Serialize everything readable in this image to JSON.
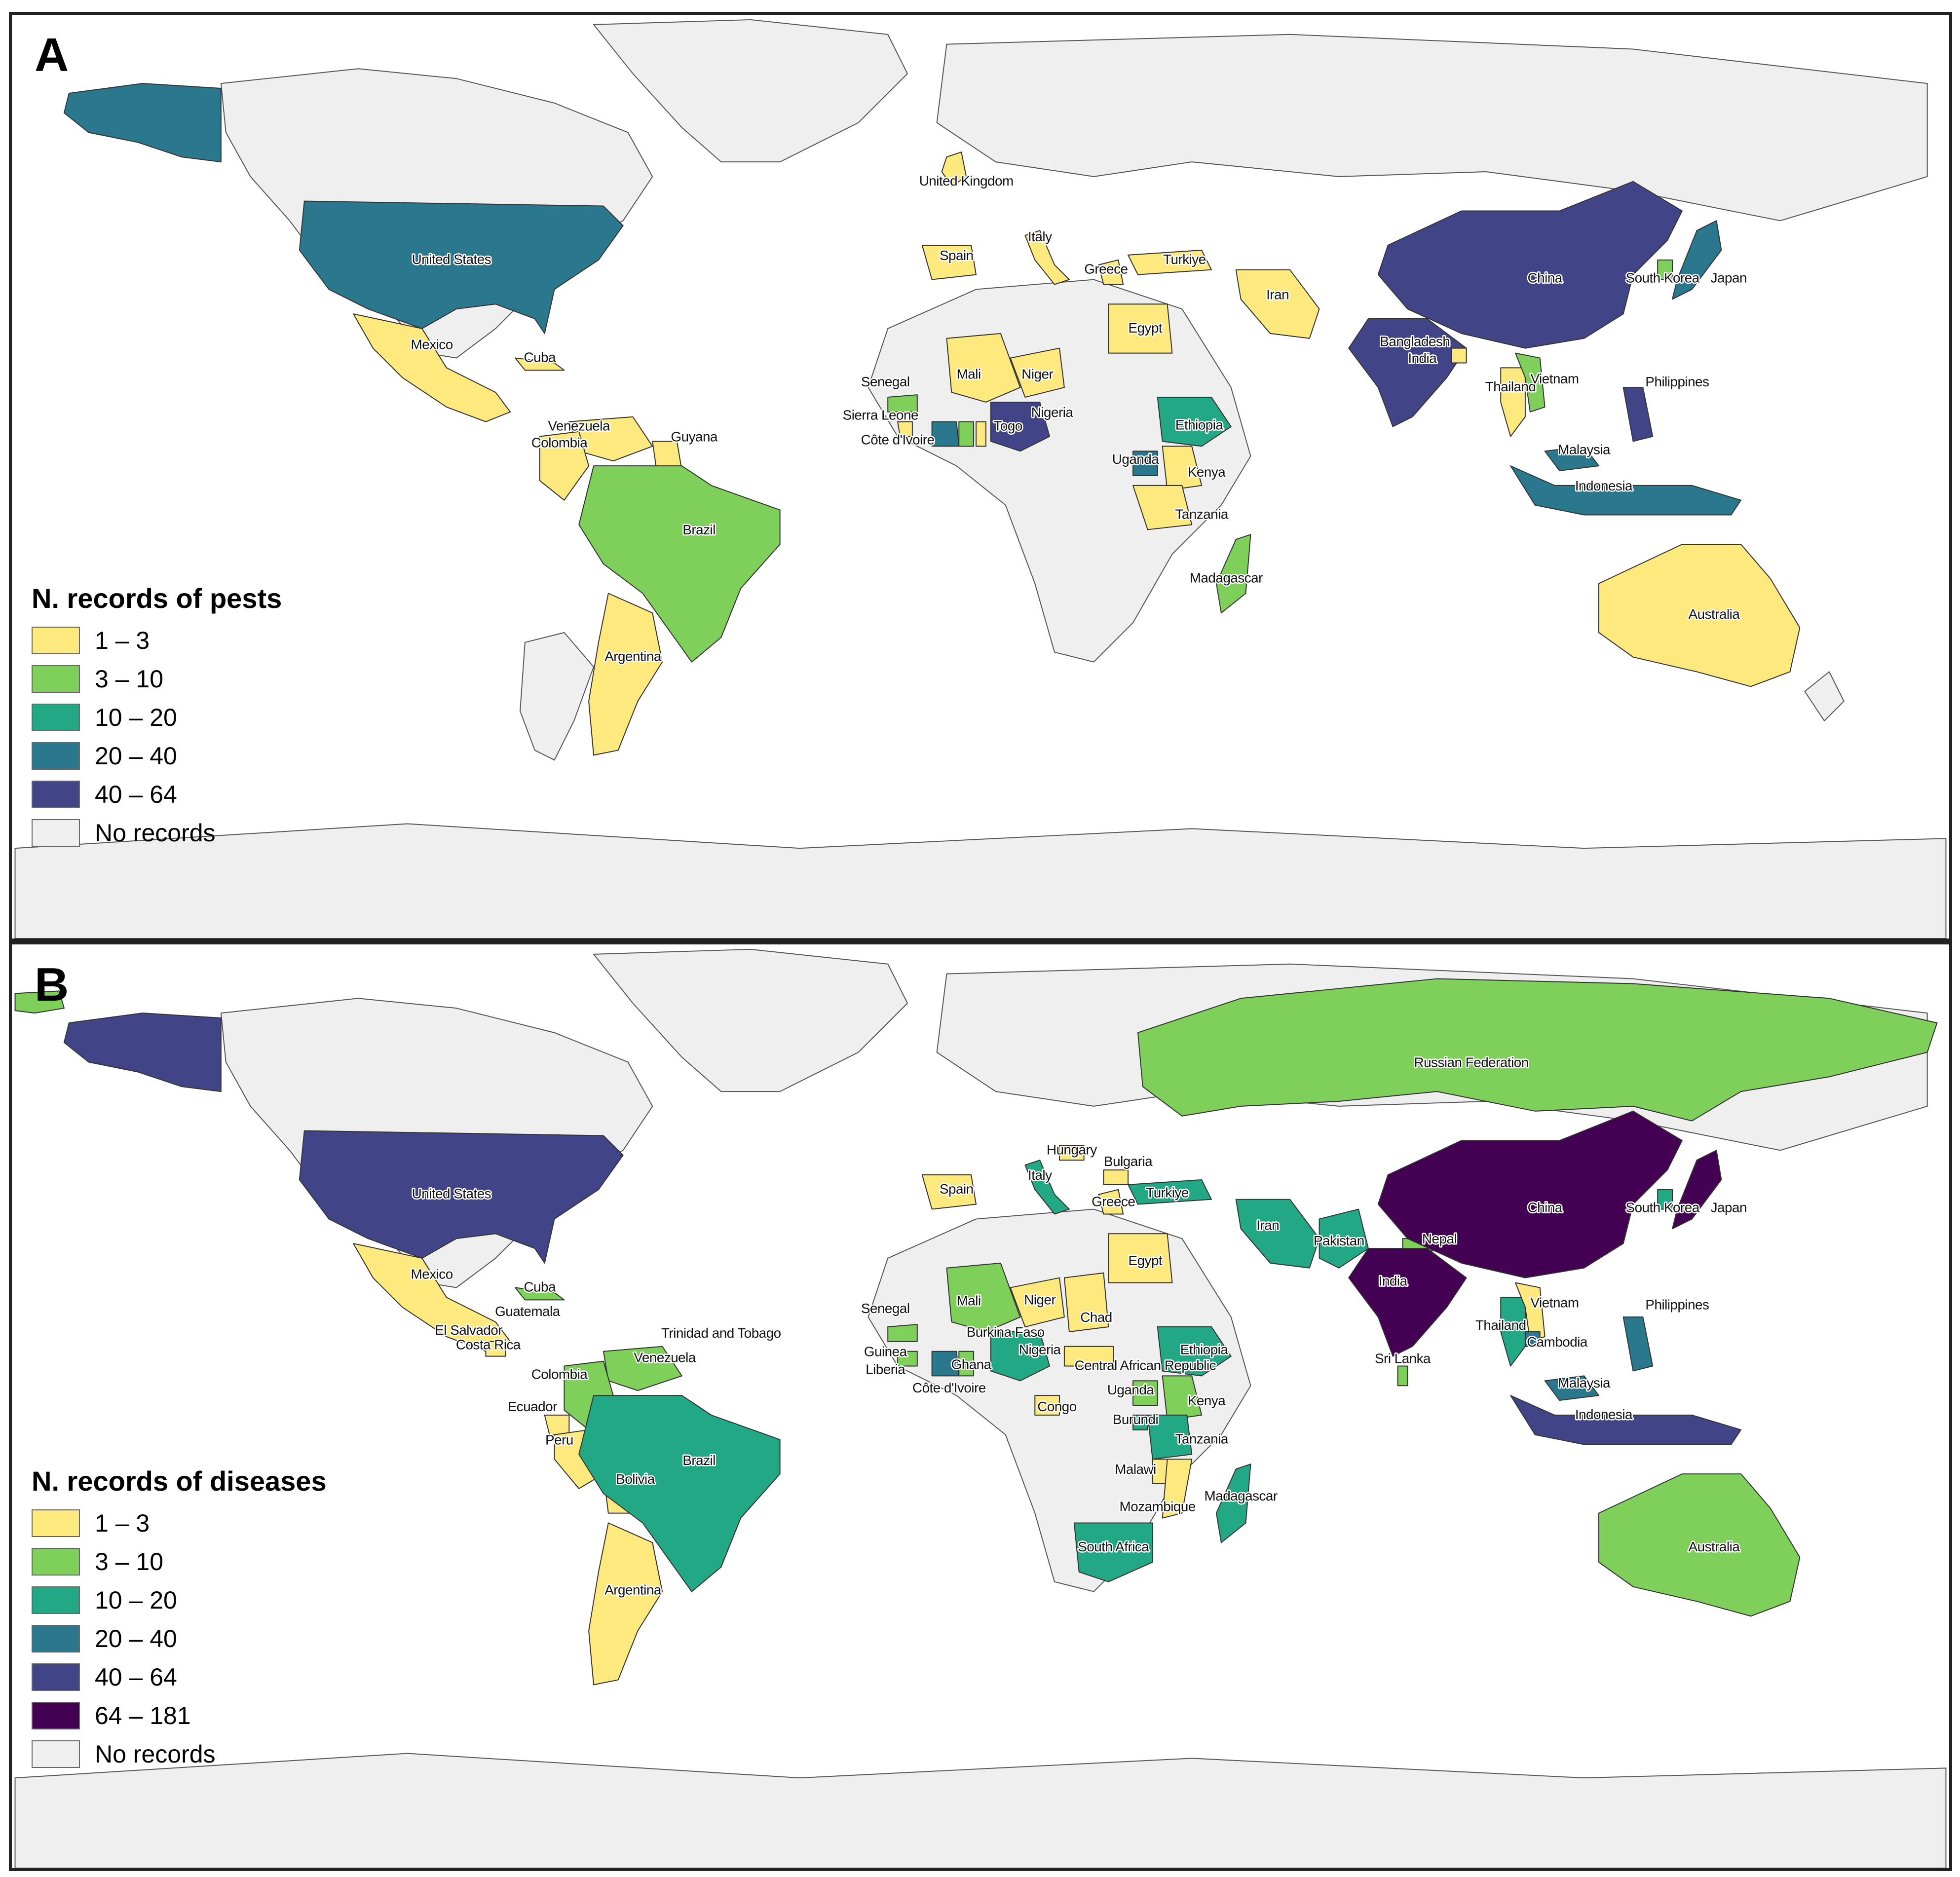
{
  "colors": {
    "c1_3": "#fde97e",
    "c3_10": "#7ed05a",
    "c10_20": "#22a884",
    "c20_40": "#2a788e",
    "c40_64": "#414487",
    "c64_181": "#440154",
    "none": "#efefef"
  },
  "panel_a": {
    "letter": "A",
    "legend_title": "N. records of pests",
    "legend": [
      {
        "label": "1 – 3",
        "color": "#fde97e"
      },
      {
        "label": "3 – 10",
        "color": "#7ed05a"
      },
      {
        "label": "10 – 20",
        "color": "#22a884"
      },
      {
        "label": "20 – 40",
        "color": "#2a788e"
      },
      {
        "label": "40 – 64",
        "color": "#414487"
      },
      {
        "label": "No records",
        "color": "#efefef"
      }
    ],
    "labels": {
      "uk": "United Kingdom",
      "us": "United States",
      "mexico": "Mexico",
      "cuba": "Cuba",
      "venezuela": "Venezuela",
      "colombia": "Colombia",
      "guyana": "Guyana",
      "brazil": "Brazil",
      "argentina": "Argentina",
      "spain": "Spain",
      "italy": "Italy",
      "greece": "Greece",
      "turkiye": "Turkiye",
      "iran": "Iran",
      "egypt": "Egypt",
      "senegal": "Senegal",
      "mali": "Mali",
      "niger": "Niger",
      "sierra_leone": "Sierra Leone",
      "cote_divoire": "Côte d'Ivoire",
      "togo": "Togo",
      "nigeria": "Nigeria",
      "ethiopia": "Ethiopia",
      "uganda": "Uganda",
      "kenya": "Kenya",
      "tanzania": "Tanzania",
      "madagascar": "Madagascar",
      "china": "China",
      "south_korea": "South Korea",
      "japan": "Japan",
      "bangladesh": "Bangladesh",
      "india": "India",
      "thailand": "Thailand",
      "vietnam": "Vietnam",
      "philippines": "Philippines",
      "malaysia": "Malaysia",
      "indonesia": "Indonesia",
      "australia": "Australia"
    }
  },
  "panel_b": {
    "letter": "B",
    "legend_title": "N. records of diseases",
    "legend": [
      {
        "label": "1 – 3",
        "color": "#fde97e"
      },
      {
        "label": "3 – 10",
        "color": "#7ed05a"
      },
      {
        "label": "10 – 20",
        "color": "#22a884"
      },
      {
        "label": "20 – 40",
        "color": "#2a788e"
      },
      {
        "label": "40 – 64",
        "color": "#414487"
      },
      {
        "label": "64 – 181",
        "color": "#440154"
      },
      {
        "label": "No records",
        "color": "#efefef"
      }
    ],
    "labels": {
      "russia": "Russian Federation",
      "hungary": "Hungary",
      "bulgaria": "Bulgaria",
      "italy": "Italy",
      "spain": "Spain",
      "greece": "Greece",
      "turkiye": "Turkiye",
      "iran": "Iran",
      "pakistan": "Pakistan",
      "nepal": "Nepal",
      "india": "India",
      "sri_lanka": "Sri Lanka",
      "china": "China",
      "south_korea": "South Korea",
      "japan": "Japan",
      "vietnam": "Vietnam",
      "thailand": "Thailand",
      "cambodia": "Cambodia",
      "philippines": "Philippines",
      "malaysia": "Malaysia",
      "indonesia": "Indonesia",
      "australia": "Australia",
      "us": "United States",
      "mexico": "Mexico",
      "cuba": "Cuba",
      "guatemala": "Guatemala",
      "el_salvador": "El Salvador",
      "costa_rica": "Costa Rica",
      "trinidad": "Trinidad and Tobago",
      "venezuela": "Venezuela",
      "colombia": "Colombia",
      "ecuador": "Ecuador",
      "peru": "Peru",
      "bolivia": "Bolivia",
      "brazil": "Brazil",
      "argentina": "Argentina",
      "egypt": "Egypt",
      "senegal": "Senegal",
      "mali": "Mali",
      "niger": "Niger",
      "chad": "Chad",
      "burkina_faso": "Burkina Faso",
      "guinea": "Guinea",
      "liberia": "Liberia",
      "ghana": "Ghana",
      "nigeria": "Nigeria",
      "cote_divoire": "Côte d'Ivoire",
      "car": "Central African Republic",
      "ethiopia": "Ethiopia",
      "uganda": "Uganda",
      "kenya": "Kenya",
      "burundi": "Burundi",
      "congo": "Congo",
      "tanzania": "Tanzania",
      "malawi": "Malawi",
      "mozambique": "Mozambique",
      "madagascar": "Madagascar",
      "south_africa": "South Africa"
    }
  }
}
